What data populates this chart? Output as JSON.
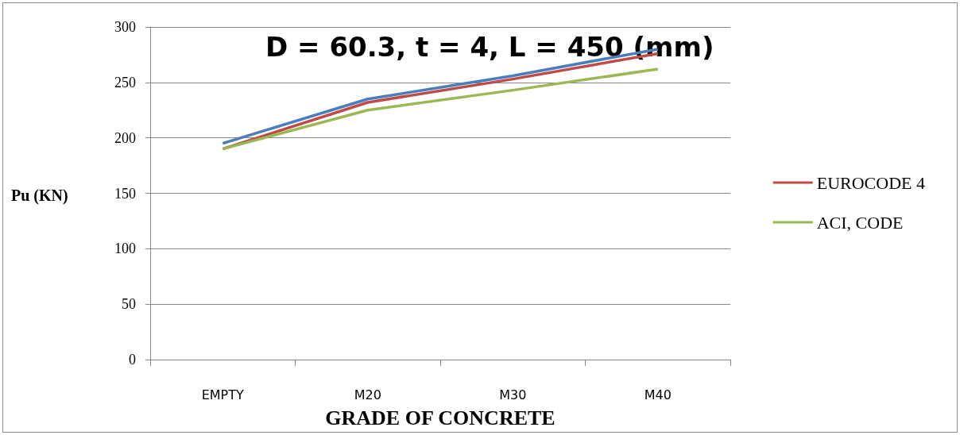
{
  "chart_data": {
    "type": "line",
    "annotations": [
      "D = 60.3, t = 4, L = 450 (mm)"
    ],
    "xlabel": "GRADE OF CONCRETE",
    "ylabel": "Pu (KN)",
    "categories": [
      "EMPTY",
      "M20",
      "M30",
      "M40"
    ],
    "series": [
      {
        "color": "#4a7ebb",
        "values": [
          195,
          235,
          256,
          280
        ]
      },
      {
        "name": "EUROCODE 4",
        "color": "#be4b48",
        "values": [
          190,
          232,
          253,
          276
        ]
      },
      {
        "name": "ACI, CODE",
        "color": "#98b954",
        "values": [
          190,
          225,
          243,
          262
        ]
      }
    ],
    "ylim": [
      0,
      300
    ],
    "yticks": [
      0,
      50,
      100,
      150,
      200,
      250,
      300
    ],
    "grid": "y",
    "legend": "right",
    "marker": "none",
    "line_style": "solid"
  }
}
